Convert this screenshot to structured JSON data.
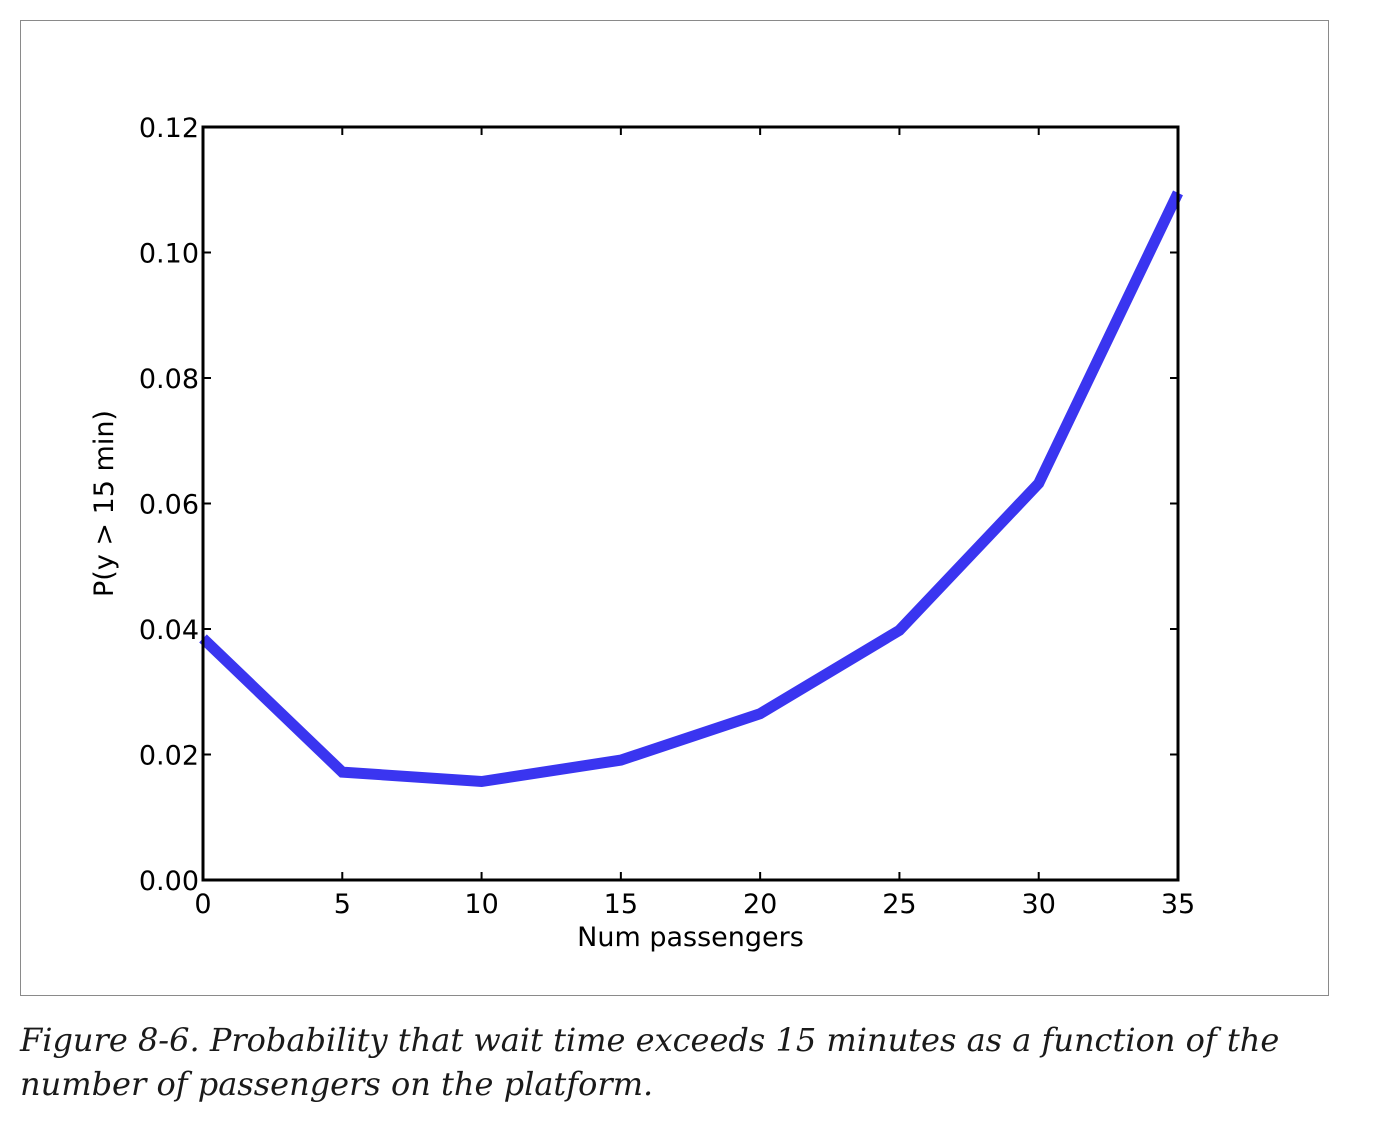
{
  "chart_data": {
    "type": "line",
    "x": [
      0,
      5,
      10,
      15,
      20,
      25,
      30,
      35
    ],
    "series": [
      {
        "values": [
          0.0385,
          0.0172,
          0.0157,
          0.0191,
          0.0265,
          0.0398,
          0.0632,
          0.1095
        ],
        "color": "#3a35f0"
      }
    ],
    "xlabel": "Num passengers",
    "ylabel": "P(y > 15 min)",
    "xlim": [
      0,
      35
    ],
    "ylim": [
      0,
      0.12
    ],
    "xticks": [
      0,
      5,
      10,
      15,
      20,
      25,
      30,
      35
    ],
    "xtick_labels": [
      "0",
      "5",
      "10",
      "15",
      "20",
      "25",
      "30",
      "35"
    ],
    "yticks": [
      0,
      0.02,
      0.04,
      0.06,
      0.08,
      0.1,
      0.12
    ],
    "ytick_labels": [
      "0.00",
      "0.02",
      "0.04",
      "0.06",
      "0.08",
      "0.10",
      "0.12"
    ],
    "grid": false
  },
  "caption": "Figure 8-6. Probability that wait time exceeds 15 minutes as a function of the number of passengers on the platform."
}
